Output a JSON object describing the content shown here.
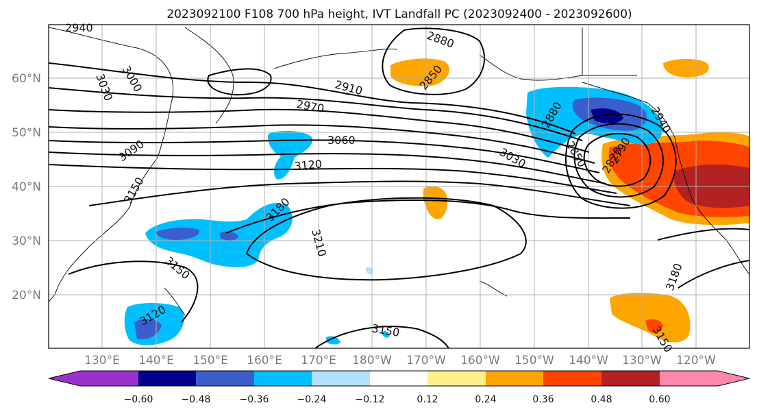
{
  "title": "2023092100 F108 700 hPa height, IVT Landfall PC (2023092400 - 2023092600)",
  "map": {
    "lat_labels": [
      "60°N",
      "50°N",
      "40°N",
      "30°N",
      "20°N"
    ],
    "lon_labels": [
      "130°E",
      "140°E",
      "150°E",
      "160°E",
      "170°E",
      "180°W",
      "170°W",
      "160°W",
      "150°W",
      "140°W",
      "130°W",
      "120°W"
    ],
    "contour_labels": [
      "2940",
      "3000",
      "3030",
      "2880",
      "2850",
      "2910",
      "2970",
      "3060",
      "3090",
      "3120",
      "3150",
      "3180",
      "3210",
      "2880",
      "2850",
      "2820",
      "2790",
      "3030",
      "2940",
      "3180",
      "3120",
      "3150",
      "3150",
      "3150"
    ]
  },
  "colorbar": {
    "tick_labels": [
      "−0.60",
      "−0.48",
      "−0.36",
      "−0.24",
      "−0.12",
      "0.12",
      "0.24",
      "0.36",
      "0.48",
      "0.60"
    ],
    "colors": [
      "#9932cc",
      "#00008b",
      "#3a5fcd",
      "#00bfff",
      "#b3e0ff",
      "#ffffff",
      "#fff08a",
      "#ffa500",
      "#ff4500",
      "#b22222",
      "#ff88aa"
    ]
  }
}
